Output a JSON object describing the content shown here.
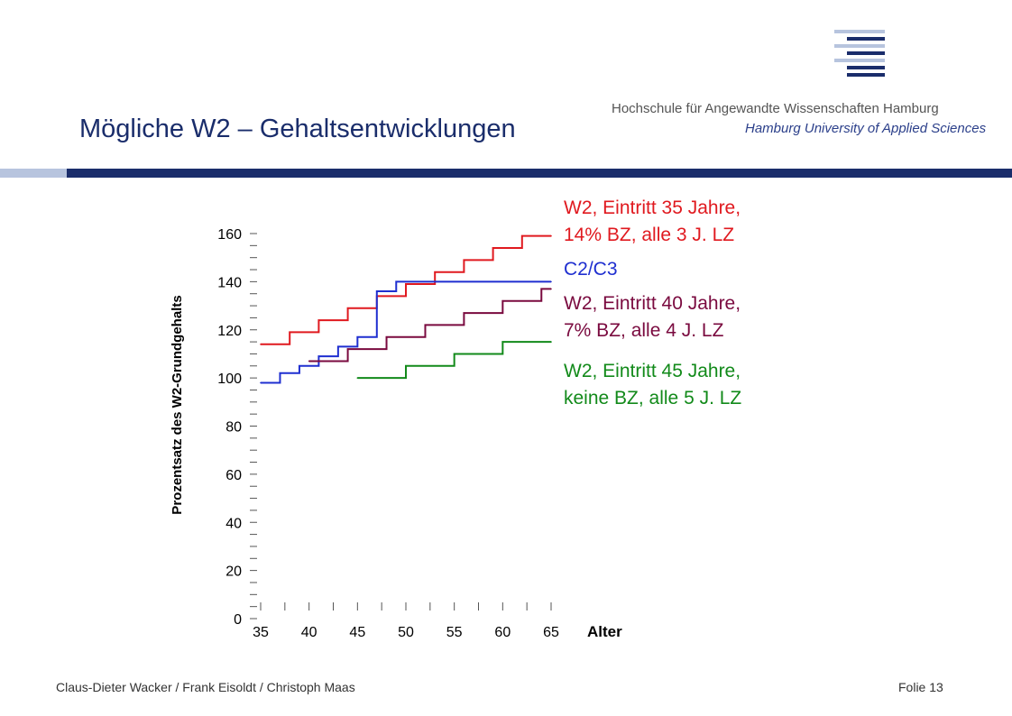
{
  "slide": {
    "title": "Mögliche W2 – Gehaltsentwicklungen",
    "footer_left": "Claus-Dieter Wacker / Frank Eisoldt / Christoph Maas",
    "footer_right": "Folie 13"
  },
  "logo": {
    "line1": "Hochschule für Angewandte Wissenschaften Hamburg",
    "line2": "Hamburg University of Applied Sciences",
    "icon": "haw-logo-bars",
    "color_dark": "#1a2d6b",
    "color_light": "#b7c4de"
  },
  "chart_data": {
    "type": "line",
    "step": true,
    "xlabel": "Alter",
    "ylabel": "Prozentsatz des W2-Grundgehalts",
    "xlim": [
      35,
      65
    ],
    "ylim": [
      0,
      160
    ],
    "x_ticks": [
      35,
      40,
      45,
      50,
      55,
      60,
      65
    ],
    "y_ticks": [
      0,
      20,
      40,
      60,
      80,
      100,
      120,
      140,
      160
    ],
    "grid": false,
    "legend_placement": "right",
    "series": [
      {
        "legend": [
          "W2, Eintritt 35 Jahre,",
          "14% BZ, alle 3 J. LZ"
        ],
        "color": "#e0191f",
        "points": [
          [
            35,
            114
          ],
          [
            38,
            119
          ],
          [
            41,
            124
          ],
          [
            44,
            129
          ],
          [
            47,
            134
          ],
          [
            50,
            139
          ],
          [
            53,
            144
          ],
          [
            56,
            149
          ],
          [
            59,
            154
          ],
          [
            62,
            159
          ],
          [
            65,
            159
          ]
        ]
      },
      {
        "legend": [
          "C2/C3"
        ],
        "color": "#1f2fd0",
        "points": [
          [
            35,
            98
          ],
          [
            37,
            102
          ],
          [
            39,
            105
          ],
          [
            41,
            109
          ],
          [
            43,
            113
          ],
          [
            45,
            117
          ],
          [
            47,
            136
          ],
          [
            49,
            140
          ],
          [
            65,
            140
          ]
        ]
      },
      {
        "legend": [
          "W2, Eintritt 40 Jahre,",
          "7% BZ, alle 4 J. LZ"
        ],
        "color": "#7a0a3f",
        "points": [
          [
            40,
            107
          ],
          [
            44,
            112
          ],
          [
            48,
            117
          ],
          [
            52,
            122
          ],
          [
            56,
            127
          ],
          [
            60,
            132
          ],
          [
            64,
            137
          ],
          [
            65,
            137
          ]
        ]
      },
      {
        "legend": [
          "W2, Eintritt 45 Jahre,",
          "keine BZ, alle 5 J. LZ"
        ],
        "color": "#128a1a",
        "points": [
          [
            45,
            100
          ],
          [
            50,
            105
          ],
          [
            55,
            110
          ],
          [
            60,
            115
          ],
          [
            65,
            115
          ]
        ]
      }
    ]
  }
}
